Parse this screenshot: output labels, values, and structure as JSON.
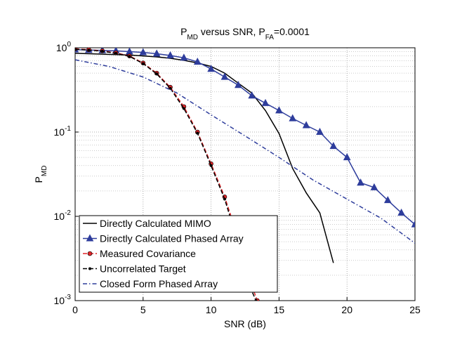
{
  "chart_data": {
    "type": "line",
    "title_parts": [
      {
        "text": "P"
      },
      {
        "text": "MD",
        "sub": true
      },
      {
        "text": " versus SNR, P"
      },
      {
        "text": "FA",
        "sub": true
      },
      {
        "text": "=0.0001"
      }
    ],
    "ylabel_parts": [
      {
        "text": "P"
      },
      {
        "text": "MD",
        "sub": true
      }
    ],
    "xlabel": "SNR (dB)",
    "xlim": [
      0,
      25
    ],
    "xticks": [
      0,
      5,
      10,
      15,
      20,
      25
    ],
    "ylim": [
      0.001,
      1
    ],
    "yticks": [
      {
        "value": 0.001,
        "label": "10^-3"
      },
      {
        "value": 0.01,
        "label": "10^-2"
      },
      {
        "value": 0.1,
        "label": "10^-1"
      },
      {
        "value": 1,
        "label": "10^0"
      }
    ],
    "log_y": true,
    "grid": true,
    "minor_grid": true,
    "legend": "lower left",
    "series": [
      {
        "name": "Directly Calculated MIMO",
        "color": "#000000",
        "line": "solid",
        "marker": "none",
        "x": [
          0,
          1,
          2,
          3,
          4,
          5,
          6,
          7,
          8,
          9,
          10,
          11,
          12,
          13,
          14,
          15,
          16,
          17,
          18,
          19
        ],
        "values": [
          0.86,
          0.85,
          0.84,
          0.83,
          0.82,
          0.8,
          0.78,
          0.75,
          0.71,
          0.66,
          0.6,
          0.5,
          0.38,
          0.29,
          0.18,
          0.096,
          0.037,
          0.019,
          0.011,
          0.0028
        ]
      },
      {
        "name": "Directly Calculated Phased Array",
        "color": "#2e3d9c",
        "line": "solid",
        "marker": "triangle",
        "x": [
          0,
          1,
          2,
          3,
          4,
          5,
          6,
          7,
          8,
          9,
          10,
          11,
          12,
          13,
          14,
          15,
          16,
          17,
          18,
          19,
          20,
          21,
          22,
          23,
          24,
          25
        ],
        "values": [
          0.95,
          0.94,
          0.93,
          0.92,
          0.9,
          0.88,
          0.85,
          0.81,
          0.76,
          0.68,
          0.56,
          0.45,
          0.36,
          0.27,
          0.22,
          0.18,
          0.145,
          0.12,
          0.1,
          0.068,
          0.05,
          0.025,
          0.022,
          0.0155,
          0.011,
          0.008
        ]
      },
      {
        "name": "Measured Covariance",
        "color": "#e0262a",
        "line": "dashed",
        "marker": "circle",
        "x": [
          0,
          1,
          2,
          3,
          4,
          5,
          6,
          7,
          8,
          9,
          10,
          11,
          12,
          13,
          13.4
        ],
        "values": [
          0.97,
          0.95,
          0.92,
          0.87,
          0.8,
          0.66,
          0.5,
          0.34,
          0.2,
          0.1,
          0.042,
          0.017,
          0.0055,
          0.0015,
          0.001
        ]
      },
      {
        "name": "Uncorrelated Target",
        "color": "#000000",
        "line": "dashed",
        "marker": "dot",
        "x": [
          0,
          1,
          2,
          3,
          4,
          5,
          6,
          7,
          8,
          9,
          10,
          11,
          12,
          13,
          13.3
        ],
        "values": [
          0.96,
          0.94,
          0.91,
          0.86,
          0.79,
          0.65,
          0.49,
          0.33,
          0.19,
          0.097,
          0.04,
          0.016,
          0.0048,
          0.0013,
          0.001
        ]
      },
      {
        "name": "Closed Form Phased Array",
        "color": "#2e3d9c",
        "line": "dashdot",
        "marker": "none",
        "x": [
          0,
          2.5,
          5,
          7.5,
          10,
          12.5,
          15,
          17.5,
          20,
          22.5,
          25
        ],
        "values": [
          0.72,
          0.6,
          0.45,
          0.29,
          0.16,
          0.09,
          0.05,
          0.027,
          0.016,
          0.0095,
          0.0048
        ]
      }
    ]
  }
}
